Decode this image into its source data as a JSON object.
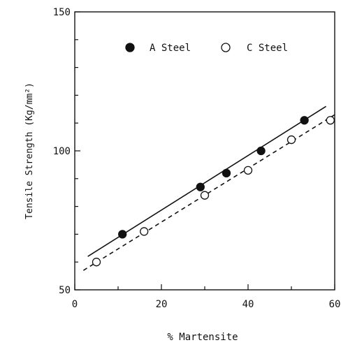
{
  "chart_data": {
    "type": "scatter",
    "xlabel": "% Martensite",
    "ylabel": "Tensile Strength (Kg/mm²)",
    "xlim": [
      0,
      60
    ],
    "ylim": [
      50,
      150
    ],
    "x_ticks": [
      "0",
      "20",
      "40",
      "60"
    ],
    "y_ticks": [
      "50",
      "100",
      "150"
    ],
    "grid": false,
    "legend": "top",
    "series": [
      {
        "name": "A Steel",
        "marker": "filled-circle",
        "line": "solid",
        "x": [
          11,
          29,
          35,
          43,
          53
        ],
        "y": [
          70,
          87,
          92,
          100,
          111
        ],
        "fit": [
          [
            3,
            62
          ],
          [
            58,
            116
          ]
        ]
      },
      {
        "name": "C Steel",
        "marker": "open-circle",
        "line": "dashed",
        "x": [
          5,
          16,
          30,
          40,
          50,
          59
        ],
        "y": [
          60,
          71,
          84,
          93,
          104,
          111
        ],
        "fit": [
          [
            2,
            57
          ],
          [
            60,
            113
          ]
        ]
      }
    ]
  }
}
